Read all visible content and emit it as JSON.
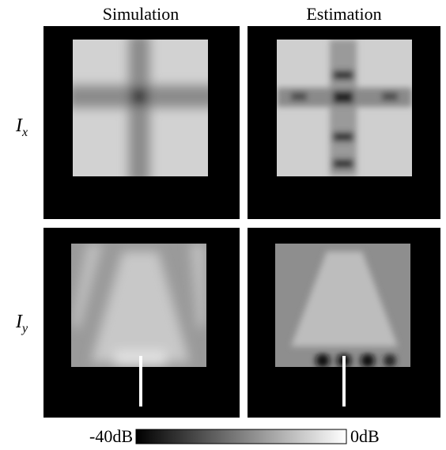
{
  "columns": [
    "Simulation",
    "Estimation"
  ],
  "rows": [
    {
      "symbol": "I",
      "subscript": "x"
    },
    {
      "symbol": "I",
      "subscript": "y"
    }
  ],
  "colorbar": {
    "min_label": "-40dB",
    "max_label": "0dB"
  }
}
